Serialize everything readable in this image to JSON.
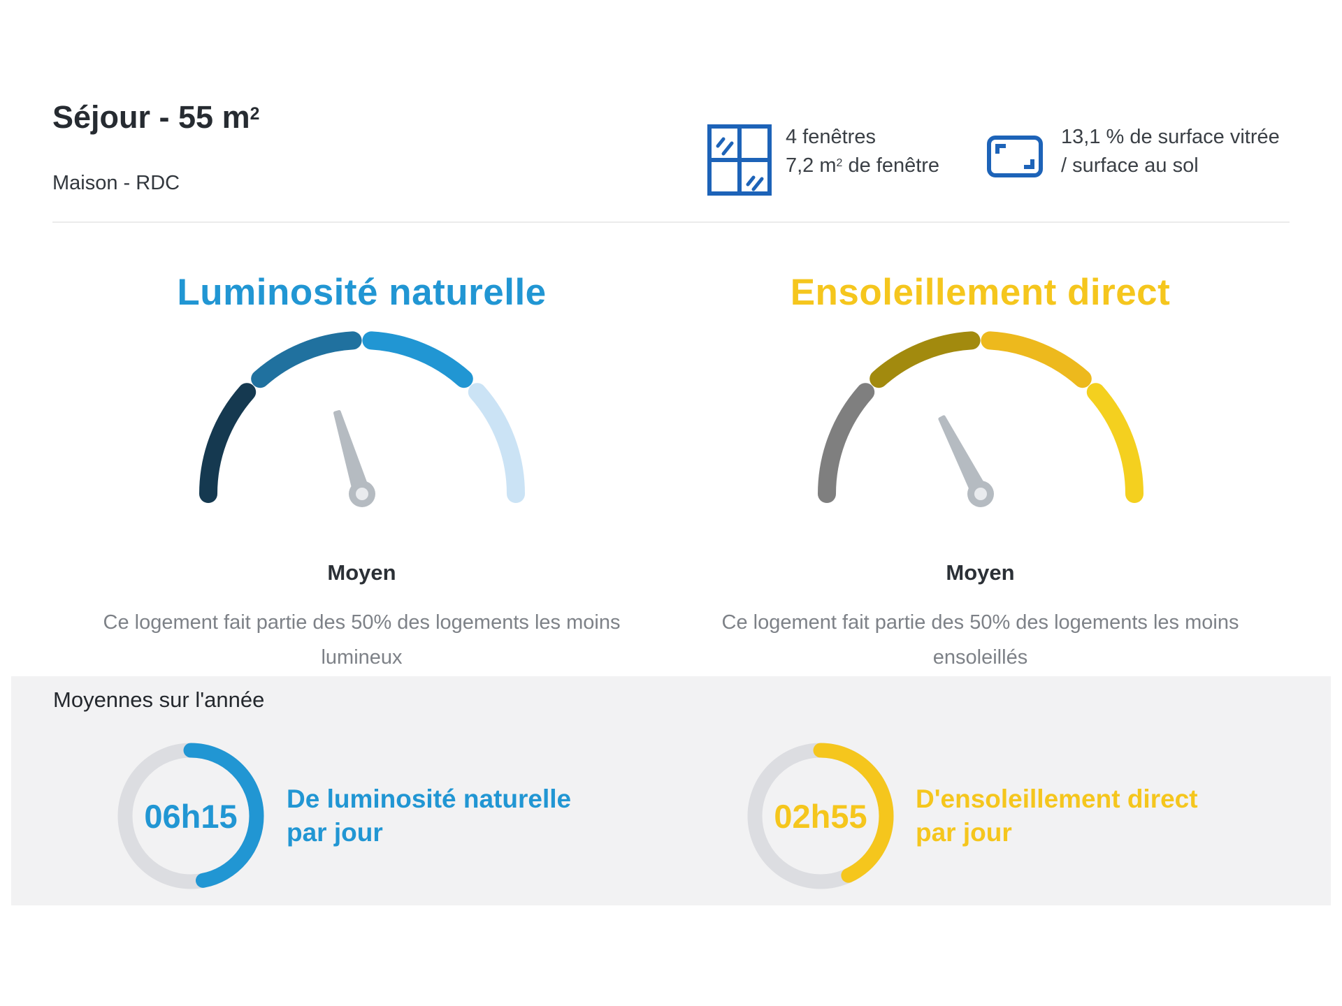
{
  "header": {
    "title_main": "Séjour - 55 m",
    "title_sup": "2",
    "subtitle": "Maison - RDC",
    "window_info": {
      "line1": "4 fenêtres",
      "line2_pre": "7,2 m",
      "line2_sup": "2",
      "line2_post": " de fenêtre"
    },
    "glazing_info": {
      "line1": "13,1 % de surface vitrée",
      "line2": "/ surface au sol"
    }
  },
  "gauges": [
    {
      "title": "Luminosité naturelle",
      "accent_color": "#2196d3",
      "segment_colors": [
        "#153950",
        "#20719f",
        "#2196d3",
        "#cbe3f5"
      ],
      "needle_angle_from_left_deg": 73,
      "rating": "Moyen",
      "desc_line1": "Ce logement fait partie des 50% des logements les moins",
      "desc_line2": "lumineux"
    },
    {
      "title": "Ensoleillement direct",
      "accent_color": "#f5c61d",
      "segment_colors": [
        "#7f7f7f",
        "#a28a0e",
        "#edb91d",
        "#f4d01f"
      ],
      "needle_angle_from_left_deg": 63,
      "rating": "Moyen",
      "desc_line1": "Ce logement fait partie des 50% des logements les moins",
      "desc_line2": "ensoleillés"
    }
  ],
  "averages": {
    "heading": "Moyennes sur l'année",
    "track_color": "#dcdde1",
    "items": [
      {
        "value": "06h15",
        "fraction": 0.47,
        "color": "#2196d3",
        "label_line1": "De luminosité naturelle",
        "label_line2": "par jour"
      },
      {
        "value": "02h55",
        "fraction": 0.43,
        "color": "#f5c61d",
        "label_line1": "D'ensoleillement direct",
        "label_line2": "par jour"
      }
    ]
  },
  "style": {
    "needle_color": "#b5bbc1",
    "needle_dot_color": "#e9ebee",
    "window_icon_color": "#1d63b8",
    "panel_bg": "#f2f2f3"
  },
  "chart_data": [
    {
      "type": "gauge",
      "title": "Luminosité naturelle",
      "value_label": "Moyen",
      "segments": 4,
      "needle_fraction_0to1": 0.41,
      "annotation": "Ce logement fait partie des 50% des logements les moins lumineux"
    },
    {
      "type": "gauge",
      "title": "Ensoleillement direct",
      "value_label": "Moyen",
      "segments": 4,
      "needle_fraction_0to1": 0.35,
      "annotation": "Ce logement fait partie des 50% des logements les moins ensoleillés"
    },
    {
      "type": "radial-progress",
      "label": "De luminosité naturelle par jour",
      "value": "06h15",
      "fraction_filled": 0.47
    },
    {
      "type": "radial-progress",
      "label": "D'ensoleillement direct par jour",
      "value": "02h55",
      "fraction_filled": 0.43
    }
  ]
}
